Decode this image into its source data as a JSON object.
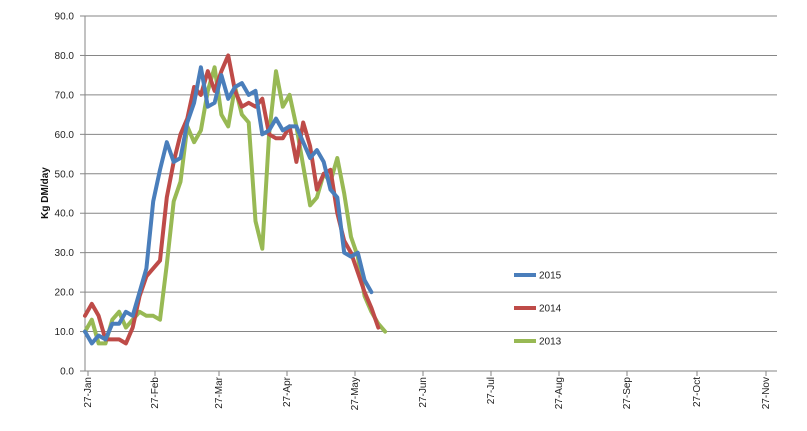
{
  "chart_data": {
    "type": "line",
    "ylabel": "Kg DM/day",
    "xlabel": "",
    "title": "",
    "ylim": [
      0,
      90
    ],
    "y_ticks": [
      "0.0",
      "10.0",
      "20.0",
      "30.0",
      "40.0",
      "50.0",
      "60.0",
      "70.0",
      "80.0",
      "90.0"
    ],
    "x_ticks": [
      "27-Jan",
      "27-Feb",
      "27-Mar",
      "27-Apr",
      "27-May",
      "27-Jun",
      "27-Jul",
      "27-Aug",
      "27-Sep",
      "27-Oct",
      "27-Nov"
    ],
    "grid": "horizontal",
    "legend_position": "right",
    "series": [
      {
        "name": "2015",
        "color": "#4a7ebb",
        "values": [
          10,
          7,
          9,
          8,
          12,
          12,
          15,
          14,
          20,
          26,
          43,
          51,
          58,
          53,
          54,
          63,
          68,
          77,
          67,
          68,
          75,
          69,
          72,
          73,
          70,
          71,
          60,
          61,
          64,
          61,
          62,
          62,
          58,
          54,
          56,
          53,
          46,
          44,
          30,
          29,
          30,
          23,
          20
        ]
      },
      {
        "name": "2014",
        "color": "#be4b48",
        "values": [
          14,
          17,
          14,
          8,
          8,
          8,
          7,
          11,
          19,
          24,
          26,
          28,
          44,
          53,
          60,
          64,
          72,
          70,
          76,
          71,
          76,
          80,
          71,
          67,
          68,
          67,
          69,
          60,
          59,
          59,
          62,
          53,
          63,
          57,
          46,
          50,
          51,
          40,
          33,
          30,
          25,
          20,
          16,
          11
        ]
      },
      {
        "name": "2013",
        "color": "#98b954",
        "values": [
          10,
          13,
          7,
          7,
          13,
          15,
          11,
          13,
          15,
          14,
          14,
          13,
          27,
          43,
          48,
          62,
          58,
          61,
          71,
          77,
          65,
          62,
          72,
          65,
          63,
          38,
          31,
          60,
          76,
          67,
          70,
          62,
          52,
          42,
          44,
          50,
          48,
          54,
          45,
          34,
          29,
          19,
          15,
          12,
          10
        ]
      }
    ]
  }
}
